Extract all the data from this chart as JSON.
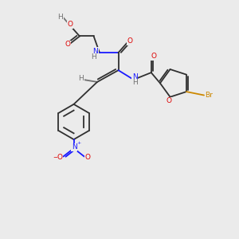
{
  "background_color": "#ebebeb",
  "C": "#303030",
  "N": "#1a1aff",
  "O": "#dd0000",
  "H": "#707070",
  "Br": "#cc8800",
  "lw": 1.3,
  "fs": 6.5
}
